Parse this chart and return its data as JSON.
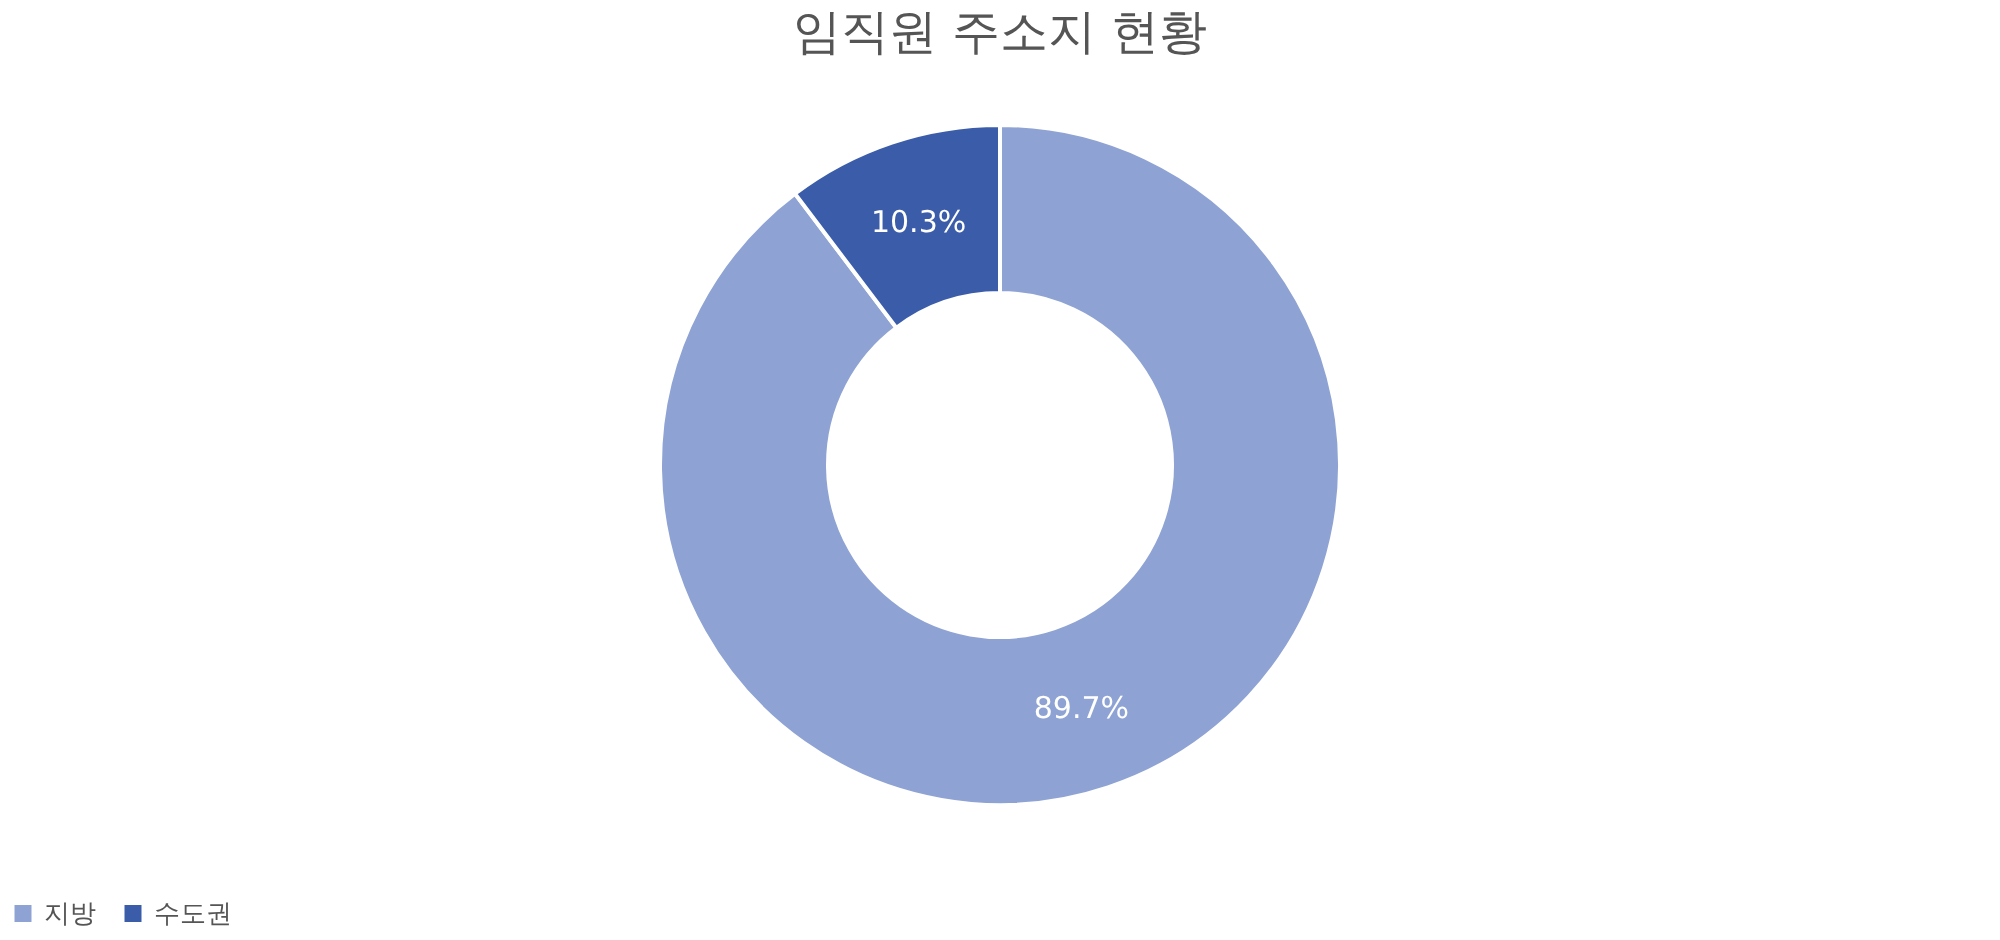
{
  "chart_data": {
    "type": "donut",
    "title": "임직원 주소지 현황",
    "categories": [
      "지방",
      "수도권"
    ],
    "values": [
      89.7,
      10.3
    ],
    "colors": [
      "#8ea3d3",
      "#3a5ca9"
    ],
    "value_labels": [
      "89.7%",
      "10.3%"
    ],
    "legend": "bottom"
  }
}
